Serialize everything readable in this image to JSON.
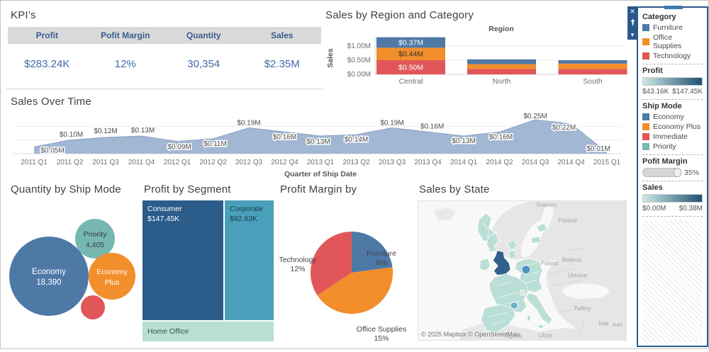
{
  "kpi": {
    "title": "KPI’s",
    "columns": [
      {
        "label": "Profit",
        "value": "$283.24K"
      },
      {
        "label": "Pofit Margin",
        "value": "12%"
      },
      {
        "label": "Quantity",
        "value": "30,354"
      },
      {
        "label": "Sales",
        "value": "$2.35M"
      }
    ]
  },
  "chart_data": [
    {
      "id": "region_category",
      "type": "bar",
      "title": "Sales by Region and Category",
      "x_axis_title": "Region",
      "ylabel": "Sales",
      "y_ticks": [
        {
          "label": "$0.00M",
          "value": 0
        },
        {
          "label": "$0.50M",
          "value": 0.5
        },
        {
          "label": "$1.00M",
          "value": 1.0
        }
      ],
      "ylim": [
        0,
        1.4
      ],
      "categories": [
        "Central",
        "North",
        "South"
      ],
      "series": [
        {
          "name": "Technology",
          "color": "#e15759",
          "label_color": "#ffffff",
          "values": [
            0.5,
            0.19,
            0.19
          ],
          "labels": [
            "$0.50M",
            "",
            ""
          ]
        },
        {
          "name": "Office Supplies",
          "color": "#f28e2b",
          "label_color": "#333333",
          "values": [
            0.44,
            0.17,
            0.19
          ],
          "labels": [
            "$0.44M",
            "",
            ""
          ]
        },
        {
          "name": "Furniture",
          "color": "#4e79a7",
          "label_color": "#ffffff",
          "values": [
            0.37,
            0.17,
            0.12
          ],
          "labels": [
            "$0.37M",
            "",
            ""
          ]
        }
      ]
    },
    {
      "id": "sales_over_time",
      "type": "area",
      "title": "Sales Over Time",
      "xlabel": "Quarter of Ship Date",
      "color": "#9db3d1",
      "x": [
        "2011 Q1",
        "2011 Q2",
        "2011 Q3",
        "2011 Q4",
        "2012 Q1",
        "2012 Q2",
        "2012 Q3",
        "2012 Q4",
        "2013 Q1",
        "2013 Q2",
        "2013 Q3",
        "2013 Q4",
        "2014 Q1",
        "2014 Q2",
        "2014 Q3",
        "2014 Q4",
        "2015 Q1"
      ],
      "values": [
        0.05,
        0.1,
        0.12,
        0.13,
        0.09,
        0.11,
        0.19,
        0.16,
        0.13,
        0.14,
        0.19,
        0.16,
        0.13,
        0.16,
        0.25,
        0.22,
        0.01
      ],
      "point_labels": [
        "$0.05M",
        "$0.10M",
        "$0.12M",
        "$0.13M",
        "$0.09M",
        "$0.11M",
        "$0.19M",
        "$0.16M",
        "$0.13M",
        "$0.14M",
        "$0.19M",
        "$0.16M",
        "$0.13M",
        "$0.16M",
        "$0.25M",
        "$0.22M",
        "$0.01M"
      ]
    },
    {
      "id": "ship_mode_bubbles",
      "type": "bubble",
      "title": "Quantity by Ship Mode",
      "bubbles": [
        {
          "name": "Economy",
          "quantity": 18390,
          "label": [
            "Economy",
            "18,390"
          ],
          "color": "#4e79a7",
          "text_color": "#ffffff"
        },
        {
          "name": "Priority",
          "quantity": 4405,
          "label": [
            "Priority",
            "4,405"
          ],
          "color": "#76b7b2",
          "text_color": "#3a3a3a"
        },
        {
          "name": "Economy Plus",
          "label": [
            "Economy",
            "Plus"
          ],
          "color": "#f28e2b",
          "text_color": "#ffffff"
        },
        {
          "name": "Immediate",
          "label": [],
          "color": "#e15759",
          "text_color": "#ffffff"
        }
      ]
    },
    {
      "id": "profit_by_segment",
      "type": "treemap",
      "title": "Profit by Segment",
      "tiles": [
        {
          "name": "Consumer",
          "value_label": "$147.45K",
          "value": 147.45,
          "color": "#2b5c8a",
          "text_color": "#ffffff"
        },
        {
          "name": "Corporate",
          "value_label": "$92.63K",
          "value": 92.63,
          "color": "#4aa0ba",
          "text_color": "#16394d"
        },
        {
          "name": "Home Office",
          "value_label": "",
          "value": 43.16,
          "color": "#b9ded2",
          "text_color": "#2f5a4f"
        }
      ]
    },
    {
      "id": "profit_margin_pie",
      "type": "pie",
      "title": "Profit Margin by",
      "slices": [
        {
          "name": "Furniture",
          "pct_label": "8%",
          "value": 8,
          "color": "#4e79a7"
        },
        {
          "name": "Office Supplies",
          "pct_label": "15%",
          "value": 15,
          "color": "#f28e2b"
        },
        {
          "name": "Technology",
          "pct_label": "12%",
          "value": 12,
          "color": "#e15759"
        }
      ]
    },
    {
      "id": "sales_by_state_map",
      "type": "map",
      "title": "Sales by State",
      "attribution": "© 2025 Mapbox © OpenStreetMap",
      "country_labels": [
        "Sweden",
        "Finland",
        "Poland",
        "Belarus",
        "Ukraine",
        "Turkey",
        "Iraq",
        "Iran",
        "Algeria",
        "Libya"
      ]
    }
  ],
  "legend_panel": {
    "window_controls": {
      "close": "✕",
      "pin": "pin",
      "collapse": "▾"
    },
    "category": {
      "title": "Category",
      "items": [
        {
          "label": "Furniture",
          "color": "#4e79a7"
        },
        {
          "label": "Office Supplies",
          "color": "#f28e2b"
        },
        {
          "label": "Technology",
          "color": "#e15759"
        }
      ]
    },
    "profit": {
      "title": "Profit",
      "min_label": "$43.16K",
      "max_label": "$147.45K",
      "gradient": [
        "#cde8e3",
        "#1b4f71"
      ]
    },
    "ship_mode": {
      "title": "Ship Mode",
      "items": [
        {
          "label": "Economy",
          "color": "#4e79a7"
        },
        {
          "label": "Economy Plus",
          "color": "#f28e2b"
        },
        {
          "label": "Immediate",
          "color": "#e15759"
        },
        {
          "label": "Priority",
          "color": "#76b7b2"
        }
      ]
    },
    "profit_margin": {
      "title": "Pofit Margin",
      "value": "35%"
    },
    "sales": {
      "title": "Sales",
      "min_label": "$0.00M",
      "max_label": "$0.38M",
      "gradient": [
        "#cde8e3",
        "#1f5273"
      ]
    }
  },
  "colors": {
    "kpi_header_bg": "#d9d9d9",
    "kpi_header_text": "#3d5c8e",
    "kpi_value_text": "#3f6ba6",
    "panel_border": "#2a5a8c",
    "map_england": "#31608f",
    "map_region_fill": "#badfd7"
  }
}
